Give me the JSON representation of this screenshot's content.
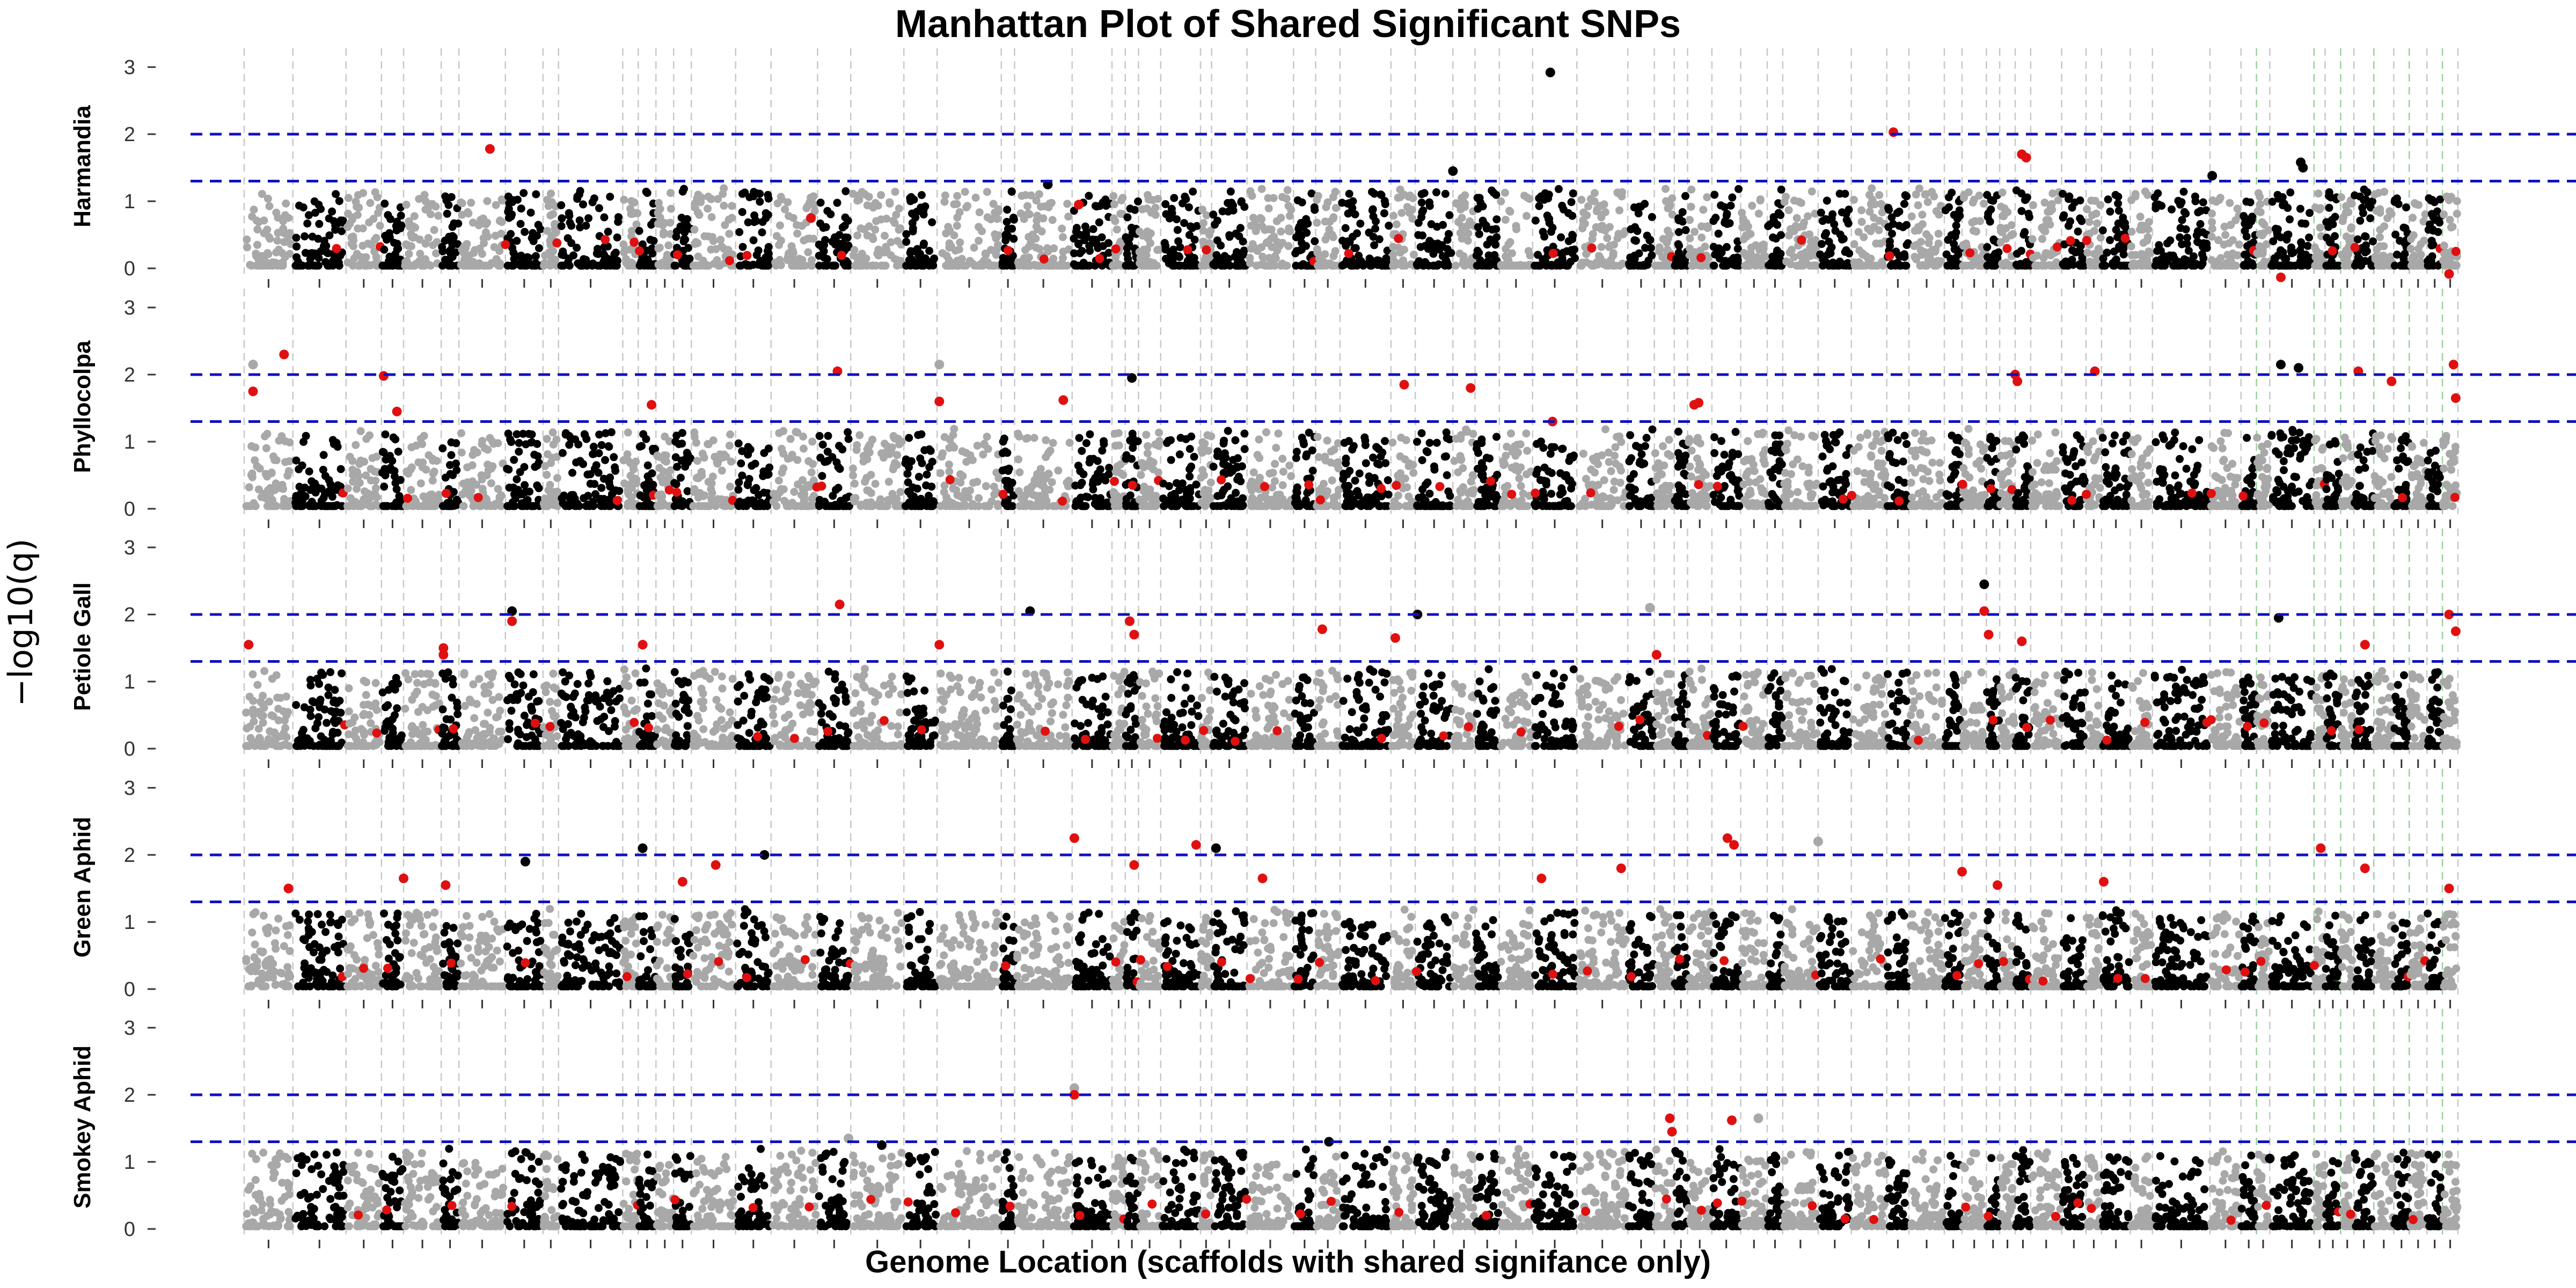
{
  "chart_data": {
    "type": "scatter",
    "title": "Manhattan Plot of Shared Significant SNPs",
    "xlabel": "Genome Location (scaffolds with shared signifance only)",
    "ylabel": "−log10(q)",
    "ylim": [
      0,
      3.2
    ],
    "yticks": [
      "0",
      "1",
      "2",
      "3"
    ],
    "thresholds": [
      {
        "value": 2.0,
        "color": "#0000cc",
        "style": "dashed"
      },
      {
        "value": 1.3,
        "color": "#0000cc",
        "style": "dashed"
      }
    ],
    "colors": {
      "alt_a": "#000000",
      "alt_b": "#a8a8a8",
      "highlight": "#e01010",
      "threshold": "#1010c0",
      "scaffold_line": "#c8c8c8",
      "green_line": "#9ccf9c"
    },
    "grid": false,
    "panels": [
      {
        "name": "Harmandia",
        "peaks": [
          {
            "x": 0.111,
            "y": 1.78,
            "c": "h"
          },
          {
            "x": 0.59,
            "y": 2.92,
            "c": "a"
          },
          {
            "x": 0.546,
            "y": 1.45,
            "c": "a"
          },
          {
            "x": 0.745,
            "y": 2.03,
            "c": "h"
          },
          {
            "x": 0.803,
            "y": 1.7,
            "c": "h"
          },
          {
            "x": 0.805,
            "y": 1.65,
            "c": "h"
          },
          {
            "x": 0.929,
            "y": 1.58,
            "c": "a"
          },
          {
            "x": 0.93,
            "y": 1.5,
            "c": "a"
          },
          {
            "x": 0.889,
            "y": 1.38,
            "c": "a"
          },
          {
            "x": 0.363,
            "y": 1.25,
            "c": "a"
          },
          {
            "x": 0.256,
            "y": 0.75,
            "c": "h"
          },
          {
            "x": 0.377,
            "y": 0.95,
            "c": "h"
          }
        ]
      },
      {
        "name": "Phyllocolpa",
        "peaks": [
          {
            "x": 0.004,
            "y": 1.75,
            "c": "h"
          },
          {
            "x": 0.004,
            "y": 2.15,
            "c": "b"
          },
          {
            "x": 0.018,
            "y": 2.3,
            "c": "h"
          },
          {
            "x": 0.063,
            "y": 1.98,
            "c": "h"
          },
          {
            "x": 0.069,
            "y": 1.45,
            "c": "h"
          },
          {
            "x": 0.184,
            "y": 1.55,
            "c": "h"
          },
          {
            "x": 0.268,
            "y": 2.05,
            "c": "h"
          },
          {
            "x": 0.314,
            "y": 2.15,
            "c": "b"
          },
          {
            "x": 0.314,
            "y": 1.6,
            "c": "h"
          },
          {
            "x": 0.37,
            "y": 1.62,
            "c": "h"
          },
          {
            "x": 0.401,
            "y": 1.95,
            "c": "a"
          },
          {
            "x": 0.524,
            "y": 1.85,
            "c": "h"
          },
          {
            "x": 0.554,
            "y": 1.8,
            "c": "h"
          },
          {
            "x": 0.591,
            "y": 1.3,
            "c": "h"
          },
          {
            "x": 0.655,
            "y": 1.55,
            "c": "h"
          },
          {
            "x": 0.657,
            "y": 1.58,
            "c": "h"
          },
          {
            "x": 0.8,
            "y": 2.0,
            "c": "h"
          },
          {
            "x": 0.801,
            "y": 1.9,
            "c": "h"
          },
          {
            "x": 0.836,
            "y": 2.05,
            "c": "h"
          },
          {
            "x": 0.92,
            "y": 3.45,
            "c": "h"
          },
          {
            "x": 0.92,
            "y": 2.15,
            "c": "a"
          },
          {
            "x": 0.928,
            "y": 2.1,
            "c": "a"
          },
          {
            "x": 0.955,
            "y": 2.05,
            "c": "h"
          },
          {
            "x": 0.97,
            "y": 1.9,
            "c": "h"
          },
          {
            "x": 0.996,
            "y": 3.5,
            "c": "h"
          },
          {
            "x": 0.998,
            "y": 2.15,
            "c": "h"
          },
          {
            "x": 0.999,
            "y": 1.65,
            "c": "h"
          }
        ]
      },
      {
        "name": "Petiole Gall",
        "peaks": [
          {
            "x": 0.002,
            "y": 1.55,
            "c": "h"
          },
          {
            "x": 0.09,
            "y": 1.5,
            "c": "h"
          },
          {
            "x": 0.09,
            "y": 1.4,
            "c": "h"
          },
          {
            "x": 0.121,
            "y": 2.05,
            "c": "a"
          },
          {
            "x": 0.121,
            "y": 1.9,
            "c": "h"
          },
          {
            "x": 0.18,
            "y": 1.55,
            "c": "h"
          },
          {
            "x": 0.269,
            "y": 2.15,
            "c": "h"
          },
          {
            "x": 0.314,
            "y": 1.55,
            "c": "h"
          },
          {
            "x": 0.355,
            "y": 2.05,
            "c": "a"
          },
          {
            "x": 0.4,
            "y": 1.9,
            "c": "h"
          },
          {
            "x": 0.402,
            "y": 1.7,
            "c": "h"
          },
          {
            "x": 0.487,
            "y": 1.78,
            "c": "h"
          },
          {
            "x": 0.52,
            "y": 1.65,
            "c": "h"
          },
          {
            "x": 0.53,
            "y": 2.0,
            "c": "a"
          },
          {
            "x": 0.635,
            "y": 2.1,
            "c": "b"
          },
          {
            "x": 0.638,
            "y": 1.4,
            "c": "h"
          },
          {
            "x": 0.786,
            "y": 2.45,
            "c": "a"
          },
          {
            "x": 0.786,
            "y": 2.05,
            "c": "h"
          },
          {
            "x": 0.788,
            "y": 1.7,
            "c": "h"
          },
          {
            "x": 0.803,
            "y": 1.6,
            "c": "h"
          },
          {
            "x": 0.919,
            "y": 1.95,
            "c": "a"
          },
          {
            "x": 0.958,
            "y": 1.55,
            "c": "h"
          },
          {
            "x": 0.996,
            "y": 2.0,
            "c": "h"
          },
          {
            "x": 0.999,
            "y": 1.75,
            "c": "h"
          }
        ]
      },
      {
        "name": "Green Aphid",
        "peaks": [
          {
            "x": 0.02,
            "y": 1.5,
            "c": "h"
          },
          {
            "x": 0.072,
            "y": 1.65,
            "c": "h"
          },
          {
            "x": 0.091,
            "y": 1.55,
            "c": "h"
          },
          {
            "x": 0.127,
            "y": 1.9,
            "c": "a"
          },
          {
            "x": 0.18,
            "y": 2.1,
            "c": "a"
          },
          {
            "x": 0.198,
            "y": 1.6,
            "c": "h"
          },
          {
            "x": 0.213,
            "y": 1.85,
            "c": "h"
          },
          {
            "x": 0.235,
            "y": 2.0,
            "c": "a"
          },
          {
            "x": 0.375,
            "y": 2.25,
            "c": "h"
          },
          {
            "x": 0.402,
            "y": 1.85,
            "c": "h"
          },
          {
            "x": 0.43,
            "y": 2.15,
            "c": "h"
          },
          {
            "x": 0.439,
            "y": 2.1,
            "c": "a"
          },
          {
            "x": 0.46,
            "y": 1.65,
            "c": "h"
          },
          {
            "x": 0.586,
            "y": 1.65,
            "c": "h"
          },
          {
            "x": 0.622,
            "y": 1.8,
            "c": "h"
          },
          {
            "x": 0.67,
            "y": 2.25,
            "c": "h"
          },
          {
            "x": 0.673,
            "y": 2.15,
            "c": "h"
          },
          {
            "x": 0.711,
            "y": 2.2,
            "c": "b"
          },
          {
            "x": 0.776,
            "y": 1.75,
            "c": "h"
          },
          {
            "x": 0.792,
            "y": 1.55,
            "c": "h"
          },
          {
            "x": 0.84,
            "y": 1.6,
            "c": "h"
          },
          {
            "x": 0.938,
            "y": 2.1,
            "c": "h"
          },
          {
            "x": 0.958,
            "y": 1.8,
            "c": "h"
          },
          {
            "x": 0.996,
            "y": 1.5,
            "c": "h"
          }
        ]
      },
      {
        "name": "Smokey Aphid",
        "peaks": [
          {
            "x": 0.375,
            "y": 2.1,
            "c": "b"
          },
          {
            "x": 0.375,
            "y": 2.0,
            "c": "h"
          },
          {
            "x": 0.644,
            "y": 1.65,
            "c": "h"
          },
          {
            "x": 0.645,
            "y": 1.45,
            "c": "h"
          },
          {
            "x": 0.672,
            "y": 1.62,
            "c": "h"
          },
          {
            "x": 0.273,
            "y": 1.35,
            "c": "b"
          },
          {
            "x": 0.288,
            "y": 1.25,
            "c": "a"
          },
          {
            "x": 0.49,
            "y": 1.3,
            "c": "a"
          },
          {
            "x": 0.684,
            "y": 1.65,
            "c": "b"
          },
          {
            "x": 0.915,
            "y": 1.05,
            "c": "a"
          }
        ]
      }
    ],
    "scaffold_boundaries": [
      0.0,
      0.022,
      0.046,
      0.062,
      0.072,
      0.089,
      0.097,
      0.118,
      0.135,
      0.142,
      0.171,
      0.178,
      0.186,
      0.194,
      0.202,
      0.222,
      0.238,
      0.259,
      0.274,
      0.298,
      0.313,
      0.342,
      0.348,
      0.374,
      0.392,
      0.398,
      0.404,
      0.414,
      0.432,
      0.437,
      0.453,
      0.474,
      0.484,
      0.495,
      0.518,
      0.529,
      0.546,
      0.556,
      0.567,
      0.582,
      0.602,
      0.625,
      0.637,
      0.646,
      0.652,
      0.663,
      0.676,
      0.688,
      0.695,
      0.711,
      0.726,
      0.742,
      0.752,
      0.768,
      0.776,
      0.787,
      0.793,
      0.8,
      0.807,
      0.821,
      0.832,
      0.839,
      0.852,
      0.862,
      0.888,
      0.902,
      0.909,
      0.915,
      0.935,
      0.94,
      0.947,
      0.953,
      0.962,
      0.971,
      0.978,
      0.986,
      0.993,
      1.0
    ]
  }
}
